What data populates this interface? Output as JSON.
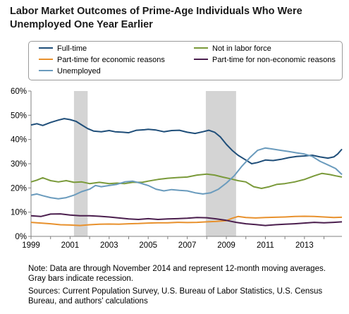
{
  "title_line1": "Labor Market Outcomes of Prime-Age Individuals Who Were",
  "title_line2": "Unemployed One Year Earlier",
  "note": "Note: Data are through November 2014 and represent 12-month moving averages.  Gray bars indicate recession.",
  "sources": "Sources: Current Population Survey, U.S. Bureau of Labor Statistics, U.S. Census Bureau, and authors' calculations",
  "chart_data": {
    "type": "line",
    "title": "Labor Market Outcomes of Prime-Age Individuals Who Were Unemployed One Year Earlier",
    "xlim": [
      1999,
      2014.92
    ],
    "ylim": [
      0,
      60
    ],
    "x_ticks": [
      1999,
      2001,
      2003,
      2005,
      2007,
      2009,
      2011,
      2013
    ],
    "x_tick_labels": [
      "1999",
      "2001",
      "2003",
      "2005",
      "2007",
      "2009",
      "2011",
      "2013"
    ],
    "y_ticks": [
      0,
      10,
      20,
      30,
      40,
      50,
      60
    ],
    "y_tick_labels": [
      "0%",
      "10%",
      "20%",
      "30%",
      "40%",
      "50%",
      "60%"
    ],
    "grid": false,
    "legend_position": "top",
    "recessions": [
      [
        2001.2,
        2001.9
      ],
      [
        2007.95,
        2009.5
      ]
    ],
    "series": [
      {
        "name": "Full-time",
        "color": "#1f4e79",
        "points": [
          [
            1999,
            46
          ],
          [
            1999.3,
            46.5
          ],
          [
            1999.6,
            45.8
          ],
          [
            2000,
            47
          ],
          [
            2000.4,
            48
          ],
          [
            2000.7,
            48.6
          ],
          [
            2001,
            48.2
          ],
          [
            2001.3,
            47.5
          ],
          [
            2001.6,
            46
          ],
          [
            2001.9,
            44.5
          ],
          [
            2002.2,
            43.5
          ],
          [
            2002.6,
            43.2
          ],
          [
            2003,
            43.7
          ],
          [
            2003.3,
            43.2
          ],
          [
            2003.7,
            43
          ],
          [
            2004,
            42.8
          ],
          [
            2004.4,
            43.8
          ],
          [
            2004.8,
            44
          ],
          [
            2005,
            44.2
          ],
          [
            2005.4,
            43.9
          ],
          [
            2005.8,
            43.2
          ],
          [
            2006.2,
            43.7
          ],
          [
            2006.6,
            43.8
          ],
          [
            2007,
            43
          ],
          [
            2007.4,
            42.5
          ],
          [
            2007.8,
            43.2
          ],
          [
            2008.1,
            43.8
          ],
          [
            2008.4,
            43
          ],
          [
            2008.7,
            41
          ],
          [
            2009,
            38
          ],
          [
            2009.3,
            35.5
          ],
          [
            2009.6,
            33.5
          ],
          [
            2010,
            31.5
          ],
          [
            2010.3,
            30
          ],
          [
            2010.6,
            30.5
          ],
          [
            2011,
            31.5
          ],
          [
            2011.4,
            31.3
          ],
          [
            2011.8,
            31.8
          ],
          [
            2012.2,
            32.5
          ],
          [
            2012.6,
            33
          ],
          [
            2013,
            33.2
          ],
          [
            2013.4,
            33.5
          ],
          [
            2013.8,
            32.8
          ],
          [
            2014.2,
            32.3
          ],
          [
            2014.5,
            32.8
          ],
          [
            2014.7,
            34
          ],
          [
            2014.92,
            36
          ]
        ]
      },
      {
        "name": "Not in labor force",
        "color": "#7a9a3a",
        "points": [
          [
            1999,
            22.5
          ],
          [
            1999.3,
            23.2
          ],
          [
            1999.6,
            24.2
          ],
          [
            2000,
            23
          ],
          [
            2000.4,
            22.5
          ],
          [
            2000.8,
            23
          ],
          [
            2001.2,
            22.3
          ],
          [
            2001.6,
            22.5
          ],
          [
            2002,
            21.8
          ],
          [
            2002.5,
            22.3
          ],
          [
            2003,
            21.8
          ],
          [
            2003.4,
            22
          ],
          [
            2003.8,
            21.8
          ],
          [
            2004.2,
            22.3
          ],
          [
            2004.7,
            22.3
          ],
          [
            2005,
            22.8
          ],
          [
            2005.5,
            23.5
          ],
          [
            2006,
            24
          ],
          [
            2006.5,
            24.3
          ],
          [
            2007,
            24.5
          ],
          [
            2007.5,
            25.3
          ],
          [
            2008,
            25.7
          ],
          [
            2008.4,
            25.3
          ],
          [
            2008.8,
            24.5
          ],
          [
            2009.2,
            23.8
          ],
          [
            2009.6,
            23
          ],
          [
            2010,
            22.5
          ],
          [
            2010.4,
            20.5
          ],
          [
            2010.8,
            19.8
          ],
          [
            2011.2,
            20.5
          ],
          [
            2011.6,
            21.5
          ],
          [
            2012,
            21.8
          ],
          [
            2012.5,
            22.5
          ],
          [
            2013,
            23.5
          ],
          [
            2013.5,
            25
          ],
          [
            2013.9,
            26
          ],
          [
            2014.3,
            25.5
          ],
          [
            2014.6,
            25
          ],
          [
            2014.92,
            24.5
          ]
        ]
      },
      {
        "name": "Part-time for economic reasons",
        "color": "#e8912d",
        "points": [
          [
            1999,
            5.8
          ],
          [
            1999.5,
            5.5
          ],
          [
            2000,
            5.2
          ],
          [
            2000.5,
            4.8
          ],
          [
            2001,
            4.7
          ],
          [
            2001.5,
            4.5
          ],
          [
            2002,
            4.8
          ],
          [
            2002.5,
            5
          ],
          [
            2003,
            5.1
          ],
          [
            2003.5,
            5
          ],
          [
            2004,
            5.2
          ],
          [
            2004.5,
            5.3
          ],
          [
            2005,
            5.5
          ],
          [
            2005.5,
            5.6
          ],
          [
            2006,
            5.6
          ],
          [
            2006.5,
            5.8
          ],
          [
            2007,
            5.7
          ],
          [
            2007.5,
            5.8
          ],
          [
            2008,
            6
          ],
          [
            2008.5,
            6.2
          ],
          [
            2009,
            6.5
          ],
          [
            2009.3,
            7.5
          ],
          [
            2009.6,
            8.2
          ],
          [
            2010,
            7.8
          ],
          [
            2010.5,
            7.6
          ],
          [
            2011,
            7.8
          ],
          [
            2011.5,
            7.9
          ],
          [
            2012,
            8
          ],
          [
            2012.5,
            8.2
          ],
          [
            2013,
            8.3
          ],
          [
            2013.5,
            8.2
          ],
          [
            2014,
            8
          ],
          [
            2014.5,
            7.8
          ],
          [
            2014.92,
            7.9
          ]
        ]
      },
      {
        "name": "Part-time for non-economic reasons",
        "color": "#4b1f4e",
        "points": [
          [
            1999,
            8.5
          ],
          [
            1999.5,
            8.2
          ],
          [
            2000,
            9.2
          ],
          [
            2000.5,
            9.3
          ],
          [
            2001,
            8.8
          ],
          [
            2001.5,
            8.5
          ],
          [
            2002,
            8.5
          ],
          [
            2002.5,
            8.3
          ],
          [
            2003,
            8
          ],
          [
            2003.5,
            7.6
          ],
          [
            2004,
            7.2
          ],
          [
            2004.5,
            7
          ],
          [
            2005,
            7.3
          ],
          [
            2005.5,
            7
          ],
          [
            2006,
            7.2
          ],
          [
            2006.5,
            7.3
          ],
          [
            2007,
            7.5
          ],
          [
            2007.5,
            7.8
          ],
          [
            2008,
            7.7
          ],
          [
            2008.5,
            7.2
          ],
          [
            2009,
            6.6
          ],
          [
            2009.5,
            5.8
          ],
          [
            2010,
            5.2
          ],
          [
            2010.5,
            4.9
          ],
          [
            2011,
            4.5
          ],
          [
            2011.5,
            4.8
          ],
          [
            2012,
            5
          ],
          [
            2012.5,
            5.2
          ],
          [
            2013,
            5.5
          ],
          [
            2013.5,
            5.8
          ],
          [
            2014,
            5.6
          ],
          [
            2014.5,
            5.8
          ],
          [
            2014.92,
            6
          ]
        ]
      },
      {
        "name": "Unemployed",
        "color": "#6a9bbd",
        "points": [
          [
            1999,
            17
          ],
          [
            1999.3,
            17.5
          ],
          [
            1999.6,
            16.8
          ],
          [
            2000,
            16
          ],
          [
            2000.4,
            15.5
          ],
          [
            2000.8,
            16
          ],
          [
            2001.2,
            17
          ],
          [
            2001.6,
            18.5
          ],
          [
            2002,
            19.5
          ],
          [
            2002.3,
            21
          ],
          [
            2002.6,
            20.5
          ],
          [
            2003,
            21
          ],
          [
            2003.4,
            21.5
          ],
          [
            2003.8,
            22.5
          ],
          [
            2004.2,
            22.8
          ],
          [
            2004.6,
            22
          ],
          [
            2005,
            21
          ],
          [
            2005.4,
            19.5
          ],
          [
            2005.8,
            18.8
          ],
          [
            2006.2,
            19.3
          ],
          [
            2006.6,
            19
          ],
          [
            2007,
            18.8
          ],
          [
            2007.4,
            18
          ],
          [
            2007.8,
            17.5
          ],
          [
            2008.2,
            18
          ],
          [
            2008.6,
            19.5
          ],
          [
            2009,
            22
          ],
          [
            2009.4,
            25
          ],
          [
            2009.8,
            29
          ],
          [
            2010.2,
            32.5
          ],
          [
            2010.6,
            35.5
          ],
          [
            2011,
            36.5
          ],
          [
            2011.4,
            36
          ],
          [
            2011.8,
            35.5
          ],
          [
            2012.2,
            35
          ],
          [
            2012.6,
            34.5
          ],
          [
            2013,
            34
          ],
          [
            2013.4,
            33
          ],
          [
            2013.8,
            31
          ],
          [
            2014.2,
            29.5
          ],
          [
            2014.6,
            28
          ],
          [
            2014.92,
            25.5
          ]
        ]
      }
    ]
  }
}
